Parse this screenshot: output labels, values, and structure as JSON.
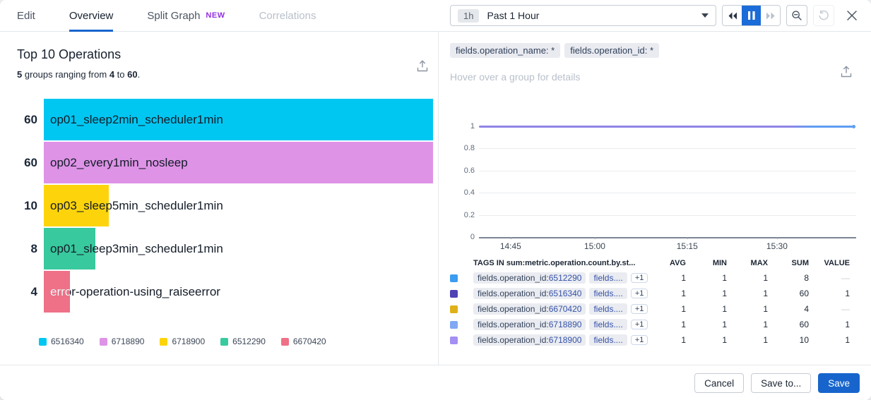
{
  "colors": {
    "accent": "#1765cc",
    "pause_blue": "#1b6bd8",
    "new_badge": "#9230e0",
    "tab_underline": "#2266d9"
  },
  "tabs": [
    {
      "label": "Edit"
    },
    {
      "label": "Overview"
    },
    {
      "label": "Split Graph",
      "badge": "NEW"
    },
    {
      "label": "Correlations"
    }
  ],
  "time_picker": {
    "range_short": "1h",
    "range_label": "Past 1 Hour"
  },
  "top_operations": {
    "title": "Top 10 Operations",
    "subtitle": {
      "count": "5",
      "text1": " groups ranging from ",
      "min": "4",
      "text2": " to ",
      "max": "60",
      "dot": "."
    },
    "max": 60,
    "bars": [
      {
        "label": "op01_sleep2min_scheduler1min",
        "value": 60,
        "display_value": "60",
        "color": "#00c7f2",
        "on_bar_text": "dark"
      },
      {
        "label": "op02_every1min_nosleep",
        "value": 60,
        "display_value": "60",
        "color": "#de93e6",
        "on_bar_text": "dark"
      },
      {
        "label": "op03_sleep5min_scheduler1min",
        "value": 10,
        "display_value": "10",
        "color": "#fdd40c",
        "on_bar_text": "dark"
      },
      {
        "label": "op01_sleep3min_scheduler1min",
        "value": 8,
        "display_value": "8",
        "color": "#38c99e",
        "on_bar_text": "dark"
      },
      {
        "label": "error-operation-using_raiseerror",
        "value": 4,
        "display_value": "4",
        "color": "#ee7187",
        "on_bar_text": "white"
      }
    ],
    "legend": [
      {
        "id": "6516340",
        "color": "#00c7f2"
      },
      {
        "id": "6718890",
        "color": "#de93e6"
      },
      {
        "id": "6718900",
        "color": "#fdd40c"
      },
      {
        "id": "6512290",
        "color": "#38c99e"
      },
      {
        "id": "6670420",
        "color": "#ee7187"
      }
    ]
  },
  "right_panel": {
    "filters": [
      "fields.operation_name: *",
      "fields.operation_id: *"
    ],
    "hover_hint": "Hover over a group for details",
    "chart": {
      "y_ticks": [
        "1",
        "0.8",
        "0.6",
        "0.4",
        "0.2",
        "0"
      ],
      "x_ticks": [
        "14:45",
        "15:00",
        "15:15",
        "15:30"
      ],
      "line_color": "#8f84e8",
      "line_end_color": "#5f9df2"
    },
    "table": {
      "tags_header": "TAGS IN sum:metric.operation.count.by.st...",
      "columns": [
        "AVG",
        "MIN",
        "MAX",
        "SUM",
        "VALUE"
      ],
      "rows": [
        {
          "color": "#3b9cf1",
          "tag_prefix": "fields.operation_id:",
          "tag_id": "6512290",
          "tag2": "fields....",
          "more": "+1",
          "avg": "1",
          "min": "1",
          "max": "1",
          "sum": "8",
          "value": "—"
        },
        {
          "color": "#4f42b5",
          "tag_prefix": "fields.operation_id:",
          "tag_id": "6516340",
          "tag2": "fields....",
          "more": "+1",
          "avg": "1",
          "min": "1",
          "max": "1",
          "sum": "60",
          "value": "1"
        },
        {
          "color": "#dfb119",
          "tag_prefix": "fields.operation_id:",
          "tag_id": "6670420",
          "tag2": "fields....",
          "more": "+1",
          "avg": "1",
          "min": "1",
          "max": "1",
          "sum": "4",
          "value": "—"
        },
        {
          "color": "#81a8f2",
          "tag_prefix": "fields.operation_id:",
          "tag_id": "6718890",
          "tag2": "fields....",
          "more": "+1",
          "avg": "1",
          "min": "1",
          "max": "1",
          "sum": "60",
          "value": "1"
        },
        {
          "color": "#a48ff2",
          "tag_prefix": "fields.operation_id:",
          "tag_id": "6718900",
          "tag2": "fields....",
          "more": "+1",
          "avg": "1",
          "min": "1",
          "max": "1",
          "sum": "10",
          "value": "1"
        }
      ]
    }
  },
  "footer": {
    "cancel": "Cancel",
    "save_to": "Save to...",
    "save": "Save"
  },
  "chart_data": [
    {
      "type": "bar",
      "title": "Top 10 Operations",
      "subtitle": "5 groups ranging from 4 to 60.",
      "orientation": "horizontal",
      "categories": [
        "op01_sleep2min_scheduler1min",
        "op02_every1min_nosleep",
        "op03_sleep5min_scheduler1min",
        "op01_sleep3min_scheduler1min",
        "error-operation-using_raiseerror"
      ],
      "values": [
        60,
        60,
        10,
        8,
        4
      ],
      "legend": [
        "6516340",
        "6718890",
        "6718900",
        "6512290",
        "6670420"
      ],
      "xlim": [
        0,
        60
      ]
    },
    {
      "type": "line",
      "x_ticks": [
        "14:45",
        "15:00",
        "15:15",
        "15:30"
      ],
      "ylim": [
        0,
        1
      ],
      "y_ticks": [
        0,
        0.2,
        0.4,
        0.6,
        0.8,
        1
      ],
      "series": [
        {
          "name": "fields.operation_id:6512290",
          "value_constant": 1
        },
        {
          "name": "fields.operation_id:6516340",
          "value_constant": 1
        },
        {
          "name": "fields.operation_id:6670420",
          "value_constant": 1
        },
        {
          "name": "fields.operation_id:6718890",
          "value_constant": 1
        },
        {
          "name": "fields.operation_id:6718900",
          "value_constant": 1
        }
      ],
      "legend_position": "table-below"
    }
  ]
}
